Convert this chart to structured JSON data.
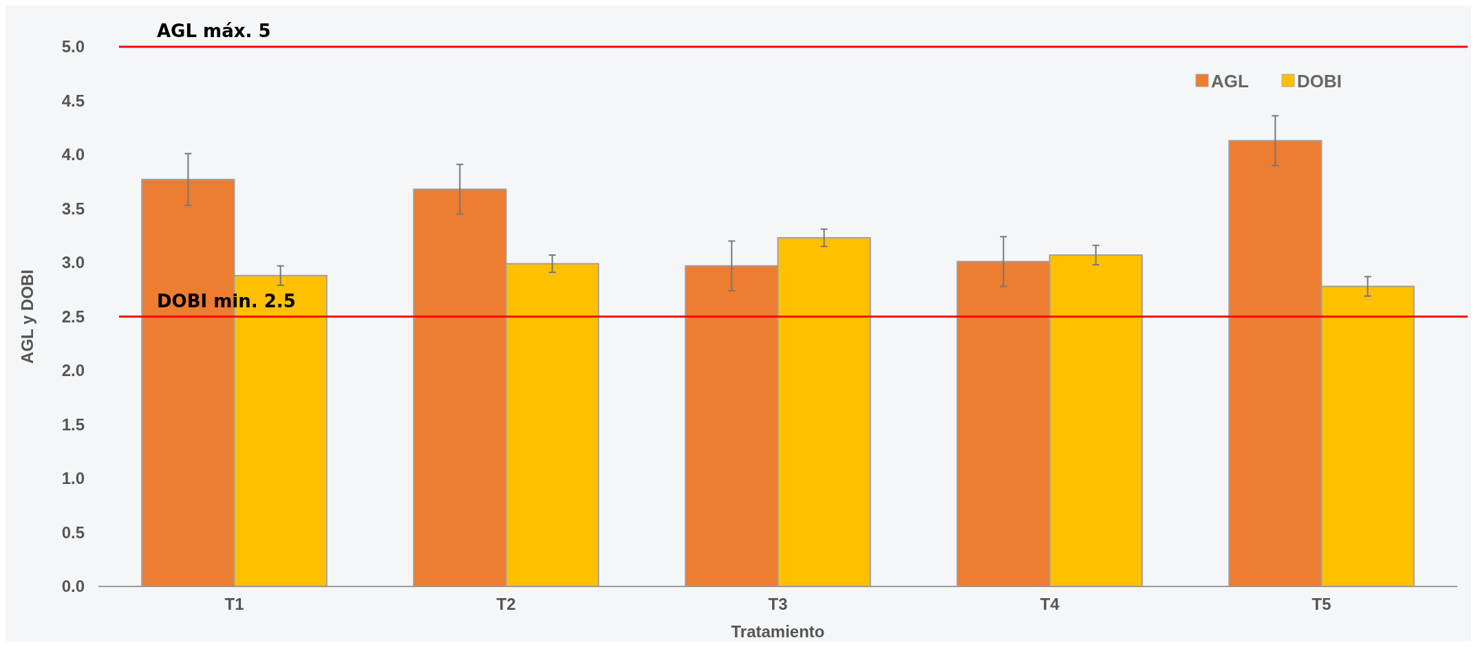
{
  "chart_data": {
    "type": "bar",
    "xlabel": "Tratamiento",
    "ylabel": "AGL  y DOBI",
    "categories": [
      "T1",
      "T2",
      "T3",
      "T4",
      "T5"
    ],
    "series": [
      {
        "name": "AGL",
        "color": "#ed7d31",
        "values": [
          3.77,
          3.68,
          2.97,
          3.01,
          4.13
        ],
        "errors": [
          0.24,
          0.23,
          0.23,
          0.23,
          0.23
        ]
      },
      {
        "name": "DOBI",
        "color": "#ffc000",
        "values": [
          2.88,
          2.99,
          3.23,
          3.07,
          2.78
        ],
        "errors": [
          0.09,
          0.08,
          0.08,
          0.09,
          0.09
        ]
      }
    ],
    "ylim": [
      0,
      5
    ],
    "yticks": [
      {
        "value": 0,
        "label": "0.0"
      },
      {
        "value": 0.5,
        "label": "0.5"
      },
      {
        "value": 1,
        "label": "1.0"
      },
      {
        "value": 1.5,
        "label": "1.5"
      },
      {
        "value": 2,
        "label": "2.0"
      },
      {
        "value": 2.5,
        "label": "2.5"
      },
      {
        "value": 3,
        "label": "3.0"
      },
      {
        "value": 3.5,
        "label": "3.5"
      },
      {
        "value": 4,
        "label": "4.0"
      },
      {
        "value": 4.5,
        "label": "4.5"
      },
      {
        "value": 5,
        "label": "5.0"
      }
    ],
    "ref_lines": [
      {
        "axis": "y",
        "value": 5,
        "label": "AGL máx. 5",
        "color": "#ff0000"
      },
      {
        "axis": "y",
        "value": 2.5,
        "label": "DOBI min. 2.5",
        "color": "#ff0000"
      }
    ],
    "legend": "top right",
    "grid": false
  }
}
